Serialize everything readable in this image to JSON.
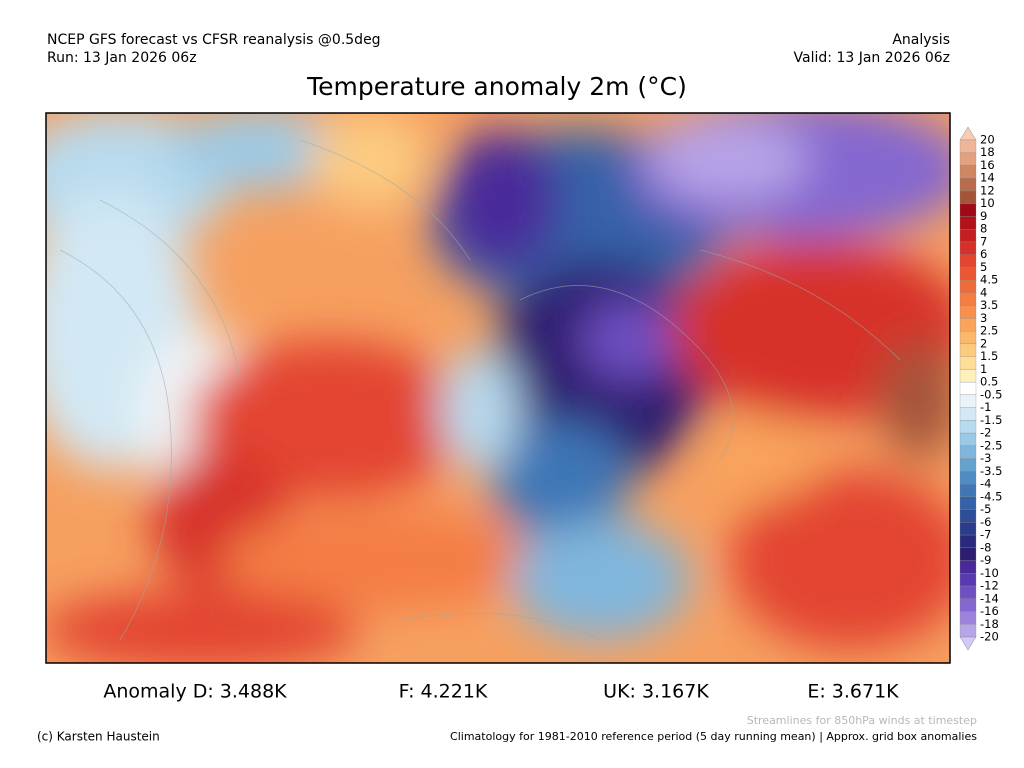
{
  "header": {
    "left": [
      "NCEP GFS forecast vs CFSR reanalysis @0.5deg",
      "Run: 13 Jan 2026 06z"
    ],
    "right": [
      "Analysis",
      "Valid: 13 Jan 2026 06z"
    ]
  },
  "title": "Temperature anomaly 2m (°C)",
  "colorbar": {
    "labels": [
      "20",
      "18",
      "16",
      "14",
      "12",
      "10",
      "9",
      "8",
      "7",
      "6",
      "5",
      "4.5",
      "4",
      "3.5",
      "3",
      "2.5",
      "2",
      "1.5",
      "1",
      "0.5",
      "-0.5",
      "-1",
      "-1.5",
      "-2",
      "-2.5",
      "-3",
      "-3.5",
      "-4",
      "-4.5",
      "-5",
      "-6",
      "-7",
      "-8",
      "-9",
      "-10",
      "-12",
      "-14",
      "-16",
      "-18",
      "-20"
    ],
    "colors": [
      "#f7cdb4",
      "#efb597",
      "#e3a07f",
      "#d08563",
      "#b96b4b",
      "#a3553a",
      "#9e0a16",
      "#b2121c",
      "#c61f22",
      "#d7302a",
      "#e34530",
      "#eb5733",
      "#f06a3a",
      "#f47d44",
      "#f7904f",
      "#f9a45c",
      "#fbb86c",
      "#fccb80",
      "#fddd98",
      "#fff0bb",
      "#ffffff",
      "#e8f3fa",
      "#d2e8f4",
      "#b8daee",
      "#9ccae6",
      "#80b6dc",
      "#66a2d0",
      "#4f8cc4",
      "#3e76b6",
      "#3462a8",
      "#2e4e9a",
      "#2b3c8c",
      "#2a2a7c",
      "#2e1e70",
      "#4a2a9a",
      "#5a3ab0",
      "#6e50c2",
      "#8468d0",
      "#9c84dc",
      "#b8a4e8",
      "#d4c8f4"
    ]
  },
  "anomalies": [
    "Anomaly D: 3.488K",
    "F: 4.221K",
    "UK: 3.167K",
    "E: 3.671K"
  ],
  "footer": {
    "credit": "(c) Karsten Haustein",
    "streamlines": "Streamlines for 850hPa winds at timestep",
    "climatology": "Climatology for 1981-2010 reference period (5 day running mean) | Approx. grid box anomalies"
  }
}
